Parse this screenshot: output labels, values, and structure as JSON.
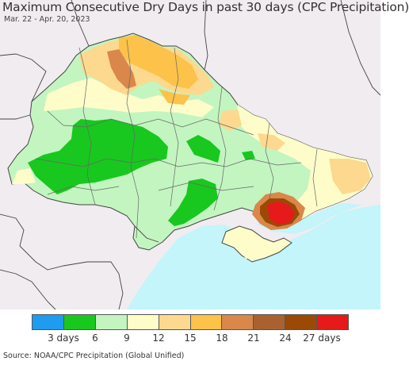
{
  "title": "Maximum Consecutive Dry Days in past 30 days (CPC Precipitation)",
  "date_range": "Mar. 22 - Apr. 20, 2023",
  "source": "Source: NOAA/CPC Precipitation (Global Unified)",
  "legend": {
    "colors": [
      "#1f9bef",
      "#18c81f",
      "#c3f5c0",
      "#fefdca",
      "#fcd98e",
      "#fcc24a",
      "#d9874a",
      "#a9622f",
      "#9b4a06",
      "#e61a1a"
    ],
    "tick_labels": [
      "3 days",
      "6",
      "9",
      "12",
      "15",
      "18",
      "21",
      "24",
      "27 days"
    ]
  },
  "colors": {
    "land_outside": "#f0ecf0",
    "sea": "#c3f5fb",
    "border": "#555555"
  }
}
